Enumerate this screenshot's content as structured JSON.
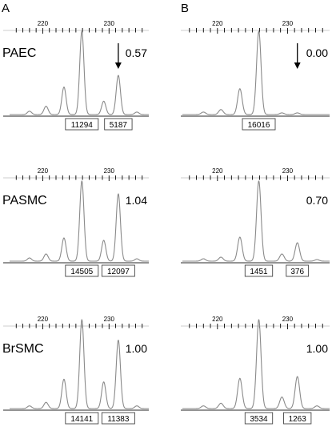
{
  "chart_data": {
    "type": "line",
    "panel_letters": [
      "A",
      "B"
    ],
    "x_ticks": [
      220,
      230
    ],
    "panels": [
      {
        "panel": "A",
        "cell": "PAEC",
        "ratio": "0.57",
        "arrow": true,
        "peak_areas": [
          "11294",
          "5187"
        ],
        "peaks": [
          [
            218.0,
            0.04
          ],
          [
            220.5,
            0.1
          ],
          [
            223.2,
            0.33
          ],
          [
            225.9,
            1.0
          ],
          [
            229.2,
            0.16
          ],
          [
            231.4,
            0.47
          ],
          [
            234.2,
            0.03
          ]
        ]
      },
      {
        "panel": "A",
        "cell": "PASMC",
        "ratio": "1.04",
        "arrow": false,
        "peak_areas": [
          "14505",
          "12097"
        ],
        "peaks": [
          [
            218.0,
            0.04
          ],
          [
            220.5,
            0.09
          ],
          [
            223.2,
            0.29
          ],
          [
            225.9,
            1.0
          ],
          [
            229.2,
            0.26
          ],
          [
            231.4,
            0.84
          ],
          [
            234.2,
            0.03
          ]
        ]
      },
      {
        "panel": "A",
        "cell": "BrSMC",
        "ratio": "1.00",
        "arrow": false,
        "peak_areas": [
          "14141",
          "11383"
        ],
        "peaks": [
          [
            218.0,
            0.03
          ],
          [
            220.5,
            0.07
          ],
          [
            223.2,
            0.33
          ],
          [
            225.9,
            1.0
          ],
          [
            229.2,
            0.3
          ],
          [
            231.4,
            0.77
          ],
          [
            234.2,
            0.03
          ]
        ]
      },
      {
        "panel": "B",
        "cell": "",
        "ratio": "0.00",
        "arrow": true,
        "peak_areas": [
          "16016"
        ],
        "peaks": [
          [
            218.0,
            0.03
          ],
          [
            220.5,
            0.06
          ],
          [
            223.2,
            0.31
          ],
          [
            225.9,
            1.0
          ],
          [
            229.2,
            0.02
          ],
          [
            231.4,
            0.02
          ]
        ]
      },
      {
        "panel": "B",
        "cell": "",
        "ratio": "0.70",
        "arrow": false,
        "peak_areas": [
          "1451",
          "376"
        ],
        "peaks": [
          [
            218.0,
            0.03
          ],
          [
            220.5,
            0.05
          ],
          [
            223.2,
            0.3
          ],
          [
            225.9,
            1.0
          ],
          [
            229.2,
            0.09
          ],
          [
            231.4,
            0.23
          ],
          [
            234.2,
            0.02
          ]
        ]
      },
      {
        "panel": "B",
        "cell": "",
        "ratio": "1.00",
        "arrow": false,
        "peak_areas": [
          "3534",
          "1263"
        ],
        "peaks": [
          [
            218.0,
            0.03
          ],
          [
            220.5,
            0.06
          ],
          [
            223.2,
            0.34
          ],
          [
            225.9,
            1.0
          ],
          [
            229.2,
            0.13
          ],
          [
            231.4,
            0.36
          ],
          [
            234.2,
            0.03
          ]
        ]
      }
    ]
  }
}
